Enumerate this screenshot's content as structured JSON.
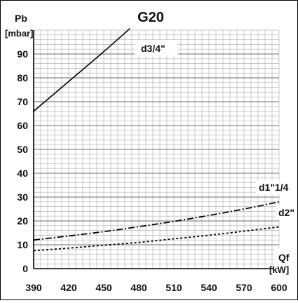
{
  "chart_data": {
    "type": "line",
    "title": "G20",
    "ylabel": "Pb",
    "yunit": "[mbar]",
    "xlabel": "Qf",
    "xunit": "[kW]",
    "xlim": [
      390,
      600
    ],
    "ylim": [
      0,
      100
    ],
    "x_ticks": [
      390,
      420,
      450,
      480,
      510,
      540,
      570,
      600
    ],
    "y_ticks": [
      0,
      10,
      20,
      30,
      40,
      50,
      60,
      70,
      80,
      90
    ],
    "grid": true,
    "series": [
      {
        "name": "d3/4\"",
        "style": "solid",
        "x": [
          390,
          420,
          450,
          480
        ],
        "y": [
          66,
          78.5,
          91,
          104
        ]
      },
      {
        "name": "d1\"1/4",
        "style": "dashdot",
        "x": [
          390,
          420,
          450,
          480,
          510,
          540,
          570,
          600
        ],
        "y": [
          12,
          13.7,
          15.5,
          17.6,
          19.8,
          22.3,
          25,
          28
        ]
      },
      {
        "name": "d2\"",
        "style": "dotted",
        "x": [
          390,
          420,
          450,
          480,
          510,
          540,
          570,
          600
        ],
        "y": [
          7.5,
          8.6,
          9.8,
          11,
          12.5,
          14,
          15.7,
          17.5
        ]
      }
    ]
  }
}
